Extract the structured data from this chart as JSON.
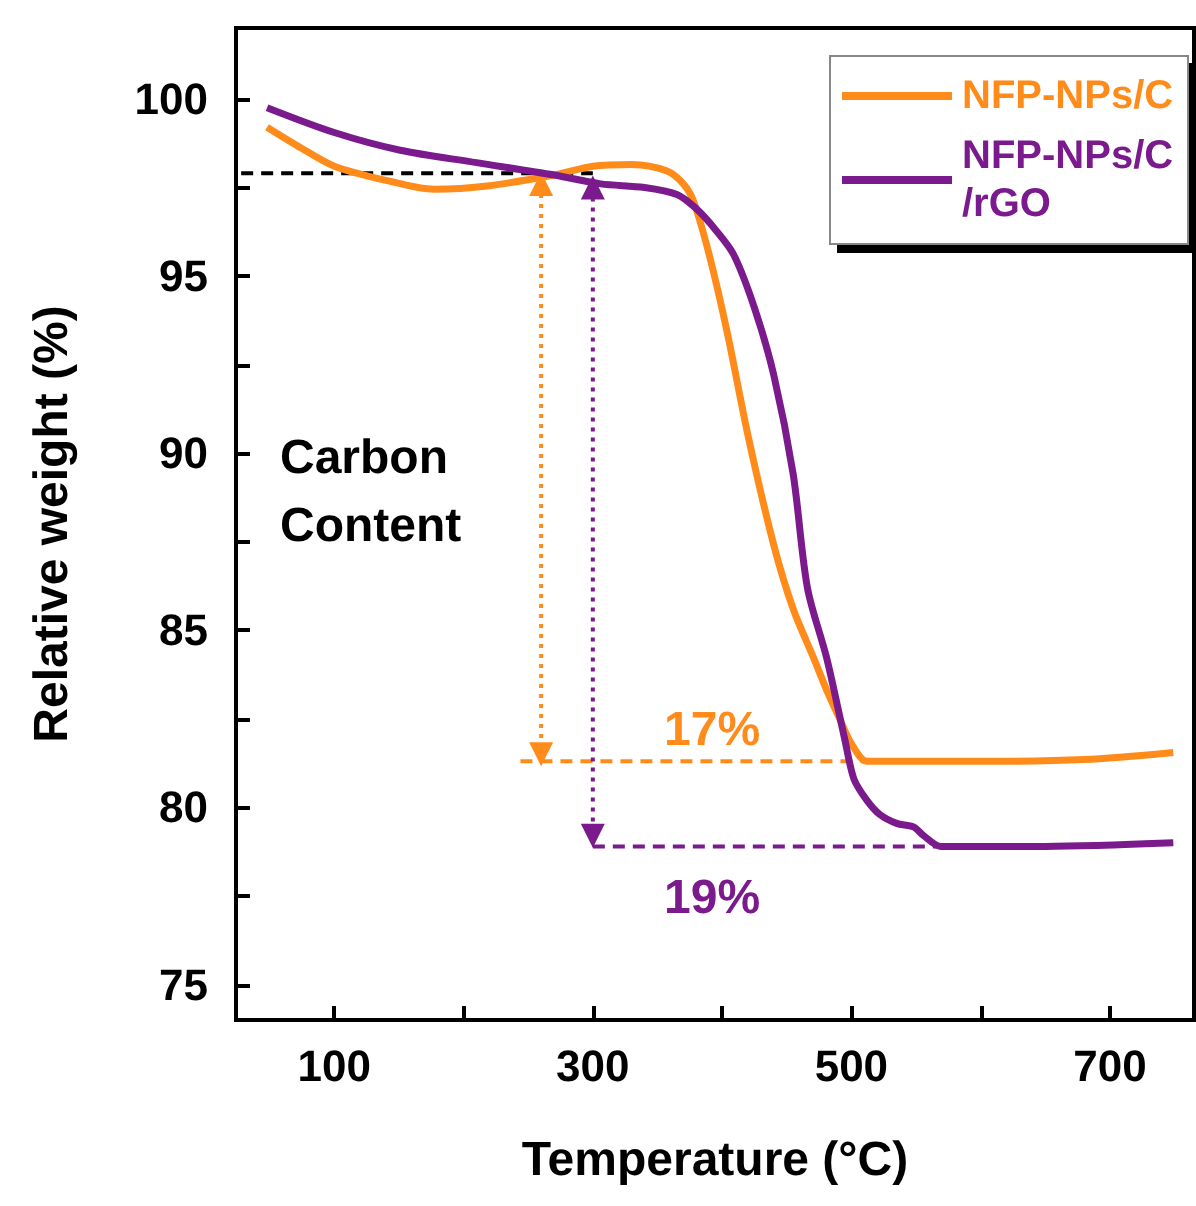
{
  "chart_data": {
    "type": "line",
    "xlabel": "Temperature (°C)",
    "ylabel": "Relative weight (%)",
    "xlim": [
      24,
      765
    ],
    "ylim": [
      74,
      102
    ],
    "xticks": [
      100,
      {
        "value": 200,
        "label": null
      },
      300,
      {
        "value": 400,
        "label": null
      },
      500,
      {
        "value": 600,
        "label": null
      },
      700
    ],
    "yticks": [
      75,
      {
        "value": 77.5,
        "label": null
      },
      80,
      {
        "value": 82.5,
        "label": null
      },
      85,
      {
        "value": 87.5,
        "label": null
      },
      90,
      {
        "value": 92.5,
        "label": null
      },
      95,
      {
        "value": 97.5,
        "label": null
      },
      100
    ],
    "grid": false,
    "legend": "top right",
    "line_style": "solid",
    "series": [
      {
        "name": "NFP-NPs/C",
        "color": "#ff8c1a",
        "x": [
          48,
          75,
          100,
          140,
          177,
          220,
          270,
          300,
          330,
          357,
          370,
          378,
          390,
          404,
          420,
          440,
          455,
          471,
          481,
          491,
          500,
          512,
          530,
          600,
          680,
          749
        ],
        "values": [
          99.2,
          98.6,
          98.1,
          97.7,
          97.45,
          97.55,
          97.85,
          98.1,
          98.15,
          97.97,
          97.6,
          97.1,
          95.6,
          93.4,
          90.5,
          87.4,
          85.6,
          84.2,
          83.3,
          82.5,
          81.8,
          81.3,
          81.3,
          81.3,
          81.35,
          81.55
        ]
      },
      {
        "name": "NFP-NPs/C/rGO",
        "color": "#7b1a8c",
        "x": [
          48,
          100,
          151,
          210,
          270,
          306,
          340,
          365,
          380,
          395,
          409,
          425,
          440,
          455,
          466,
          481,
          495,
          502,
          512,
          522,
          535,
          548,
          556,
          569,
          650,
          749
        ],
        "values": [
          99.75,
          99.05,
          98.55,
          98.2,
          97.85,
          97.6,
          97.5,
          97.3,
          96.9,
          96.3,
          95.6,
          94.1,
          92.2,
          89.4,
          86.2,
          84.2,
          81.9,
          80.8,
          80.2,
          79.8,
          79.55,
          79.45,
          79.2,
          78.9,
          78.9,
          79.0
        ]
      },
      {
        "color": "#000000",
        "line_style": "dashed",
        "marker": "none",
        "x": [
          28,
          300
        ],
        "values": [
          97.9,
          97.9
        ]
      },
      {
        "color": "#ff8c1a",
        "line_style": "dashed",
        "marker": "none",
        "x": [
          244,
          512
        ],
        "values": [
          81.3,
          81.3
        ]
      },
      {
        "color": "#7b1a8c",
        "line_style": "dashed",
        "marker": "none",
        "x": [
          300,
          569
        ],
        "values": [
          78.9,
          78.9
        ]
      },
      {
        "color": "#ff8c1a",
        "line_style": "dotted",
        "marker": "triangle",
        "x": [
          260,
          260
        ],
        "values": [
          97.6,
          81.5
        ]
      },
      {
        "color": "#7b1a8c",
        "line_style": "dotted",
        "marker": "triangle",
        "x": [
          300,
          300
        ],
        "values": [
          97.5,
          79.2
        ]
      }
    ],
    "annotations": [
      "Carbon Content",
      "17%",
      "19%"
    ]
  }
}
